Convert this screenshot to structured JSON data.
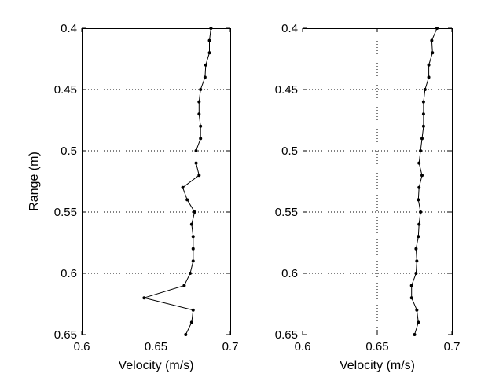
{
  "chart_data": [
    {
      "type": "line",
      "xlabel": "Velocity (m/s)",
      "ylabel": "Range (m)",
      "xlim": [
        0.6,
        0.7
      ],
      "ylim": [
        0.4,
        0.65
      ],
      "y_reversed": true,
      "grid": true,
      "xticks": [
        "0.6",
        "0.65",
        "0.7"
      ],
      "yticks": [
        "0.4",
        "0.45",
        "0.5",
        "0.55",
        "0.6",
        "0.65"
      ],
      "marker": "dot",
      "color": "#000000",
      "y": [
        0.4,
        0.41,
        0.42,
        0.43,
        0.44,
        0.45,
        0.46,
        0.47,
        0.48,
        0.49,
        0.5,
        0.51,
        0.52,
        0.53,
        0.54,
        0.55,
        0.56,
        0.57,
        0.58,
        0.59,
        0.6,
        0.61,
        0.62,
        0.63,
        0.64,
        0.65
      ],
      "x": [
        0.687,
        0.686,
        0.686,
        0.6835,
        0.683,
        0.68,
        0.679,
        0.679,
        0.68,
        0.68,
        0.677,
        0.677,
        0.679,
        0.668,
        0.671,
        0.676,
        0.674,
        0.675,
        0.675,
        0.675,
        0.673,
        0.669,
        0.642,
        0.675,
        0.674,
        0.67
      ]
    },
    {
      "type": "line",
      "xlabel": "Velocity (m/s)",
      "ylabel": "",
      "xlim": [
        0.6,
        0.7
      ],
      "ylim": [
        0.4,
        0.65
      ],
      "y_reversed": true,
      "grid": true,
      "xticks": [
        "0.6",
        "0.65",
        "0.7"
      ],
      "yticks": [
        "0.4",
        "0.45",
        "0.5",
        "0.55",
        "0.6",
        "0.65"
      ],
      "marker": "dot",
      "color": "#000000",
      "y": [
        0.4,
        0.41,
        0.42,
        0.43,
        0.44,
        0.45,
        0.46,
        0.47,
        0.48,
        0.49,
        0.5,
        0.51,
        0.52,
        0.53,
        0.54,
        0.55,
        0.56,
        0.57,
        0.58,
        0.59,
        0.6,
        0.61,
        0.62,
        0.63,
        0.64,
        0.65
      ],
      "x": [
        0.69,
        0.6865,
        0.687,
        0.6845,
        0.6845,
        0.682,
        0.681,
        0.681,
        0.681,
        0.68,
        0.679,
        0.678,
        0.68,
        0.678,
        0.6775,
        0.679,
        0.678,
        0.6775,
        0.676,
        0.6765,
        0.676,
        0.673,
        0.673,
        0.6765,
        0.6775,
        0.675
      ]
    }
  ]
}
